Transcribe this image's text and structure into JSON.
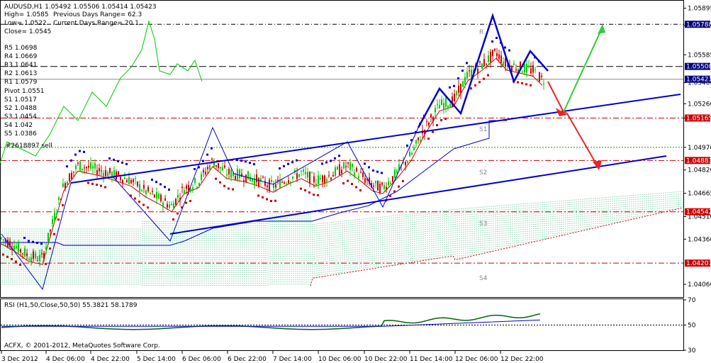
{
  "header": {
    "symbol_line": "AUDUSD,H1  1.05492 1.05506 1.05414 1.05423",
    "high": "High= 1.0585",
    "prev_range": "Previous Days Range= 62.3",
    "low": "Low= 1.0522",
    "curr_range": "Current Days Range= 20.1",
    "close": "Close= 1.0545"
  },
  "pivots": [
    {
      "label": "R5 1.0698"
    },
    {
      "label": "R4 1.0669"
    },
    {
      "label": "R3 1.0641"
    },
    {
      "label": "R2 1.0613"
    },
    {
      "label": "R1 1.0579"
    },
    {
      "label": "Pivot 1.0551"
    },
    {
      "label": "S1 1.0517"
    },
    {
      "label": "S2 1.0488"
    },
    {
      "label": "S3 1.0454"
    },
    {
      "label": "S4 1.042"
    },
    {
      "label": "S5 1.0386"
    }
  ],
  "order_label": "#2618897 sell",
  "chart_labels": {
    "r": "R",
    "s1": "S1",
    "s2": "S2",
    "s3": "S3",
    "s4": "S4"
  },
  "copyright": "ACFX, © 2001-2012, MetaQuotes Software Corp.",
  "rsi_label": "RSI (H1,50,Close,50,50) 55.3821 58.1789",
  "colors": {
    "bull": "#00cc00",
    "bear": "#cc0000",
    "trend": "#0000cc",
    "cloud": "#00a050",
    "level_red": "#cc0000",
    "level_dark": "#333333",
    "badge": "#000080",
    "rsi": "#006600"
  },
  "chart_data": {
    "type": "candlestick",
    "symbol": "AUDUSD",
    "timeframe": "H1",
    "y_ticks": [
      "1.05895",
      "1.05780",
      "1.05585",
      "1.05400",
      "1.05260",
      "1.05165",
      "1.04970",
      "1.04820",
      "1.04665",
      "1.04510",
      "1.04360",
      "1.04060"
    ],
    "x_labels": [
      "3 Dec 2012",
      "4 Dec 06:00",
      "4 Dec 22:00",
      "5 Dec 14:00",
      "6 Dec 06:00",
      "6 Dec 22:00",
      "7 Dec 14:00",
      "10 Dec 06:00",
      "10 Dec 22:00",
      "11 Dec 14:00",
      "12 Dec 06:00",
      "12 Dec 22:00"
    ],
    "badges": [
      "1.05788",
      "1.05508",
      "1.05423",
      "1.05165",
      "1.04883",
      "1.04542",
      "1.04201"
    ],
    "ylim": [
      1.0398,
      1.0594
    ],
    "price_path": [
      [
        0,
        1.0437
      ],
      [
        20,
        1.0432
      ],
      [
        40,
        1.0425
      ],
      [
        60,
        1.0423
      ],
      [
        70,
        1.044
      ],
      [
        90,
        1.0472
      ],
      [
        110,
        1.0485
      ],
      [
        140,
        1.0482
      ],
      [
        160,
        1.0479
      ],
      [
        185,
        1.0475
      ],
      [
        205,
        1.0468
      ],
      [
        225,
        1.0463
      ],
      [
        242,
        1.0458
      ],
      [
        260,
        1.047
      ],
      [
        280,
        1.0474
      ],
      [
        300,
        1.0488
      ],
      [
        320,
        1.048
      ],
      [
        345,
        1.0478
      ],
      [
        365,
        1.0475
      ],
      [
        385,
        1.0471
      ],
      [
        405,
        1.0476
      ],
      [
        425,
        1.048
      ],
      [
        445,
        1.0475
      ],
      [
        465,
        1.0478
      ],
      [
        490,
        1.0485
      ],
      [
        510,
        1.0478
      ],
      [
        525,
        1.0472
      ],
      [
        540,
        1.047
      ],
      [
        560,
        1.048
      ],
      [
        580,
        1.0492
      ],
      [
        600,
        1.051
      ],
      [
        620,
        1.0525
      ],
      [
        640,
        1.0528
      ],
      [
        660,
        1.0545
      ],
      [
        680,
        1.0552
      ],
      [
        700,
        1.056
      ],
      [
        715,
        1.0552
      ],
      [
        735,
        1.055
      ],
      [
        752,
        1.0548
      ],
      [
        765,
        1.0542
      ]
    ],
    "rsi": {
      "ticks": [
        "70",
        "50",
        "30"
      ],
      "values": [
        55.3821,
        58.1789
      ]
    }
  }
}
